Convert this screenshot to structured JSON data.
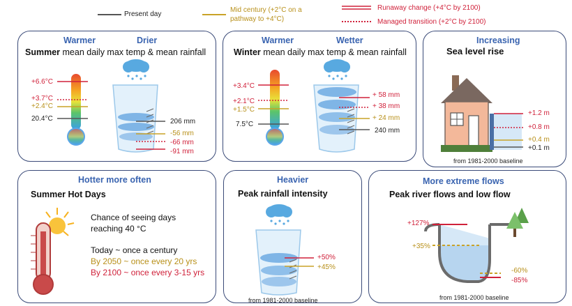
{
  "legend": {
    "present": "Present day",
    "mid": "Mid century (+2°C on a pathway to +4°C)",
    "runaway": "Runaway change (+4°C by 2100)",
    "managed": "Managed transition (+2°C by 2100)",
    "colors": {
      "present": "#555555",
      "mid": "#c9a227",
      "runaway": "#d0213a",
      "managed": "#d0213a"
    }
  },
  "summer": {
    "hdr_left": "Warmer",
    "hdr_right": "Drier",
    "title_bold": "Summer",
    "title_rest": " mean daily max temp & mean rainfall",
    "temp": [
      "+6.6°C",
      "+3.7°C",
      "+2.4°C",
      "20.4°C"
    ],
    "rain": [
      "206 mm",
      "-56 mm",
      "-66 mm",
      "-91 mm"
    ]
  },
  "winter": {
    "hdr_left": "Warmer",
    "hdr_right": "Wetter",
    "title_bold": "Winter",
    "title_rest": " mean daily max temp & mean rainfall",
    "temp": [
      "+3.4°C",
      "+2.1°C",
      "+1.5°C",
      "7.5°C"
    ],
    "rain": [
      "+ 58 mm",
      "+ 38 mm",
      "+ 24 mm",
      "240 mm"
    ]
  },
  "sea": {
    "hdr": "Increasing",
    "title": "Sea level rise",
    "levels": [
      "+1.2 m",
      "+0.8 m",
      "+0.4 m",
      "+0.1 m"
    ],
    "baseline": "from 1981-2000 baseline"
  },
  "hot": {
    "hdr": "Hotter more often",
    "title": "Summer Hot Days",
    "line1": "Chance of seeing days",
    "line2": "reaching 40 °C",
    "today": "Today ~ once a century",
    "y2050": "By 2050 ~ once every 20 yrs",
    "y2100": "By 2100 ~ once every 3-15 yrs"
  },
  "heavy": {
    "hdr": "Heavier",
    "title": "Peak rainfall intensity",
    "values": [
      "+50%",
      "+45%"
    ],
    "baseline": "from 1981-2000 baseline"
  },
  "flows": {
    "hdr": "More extreme flows",
    "title": "Peak river flows and low flow",
    "values": [
      "+127%",
      "+35%",
      "-60%",
      "-85%"
    ],
    "baseline": "from 1981-2000 baseline"
  }
}
